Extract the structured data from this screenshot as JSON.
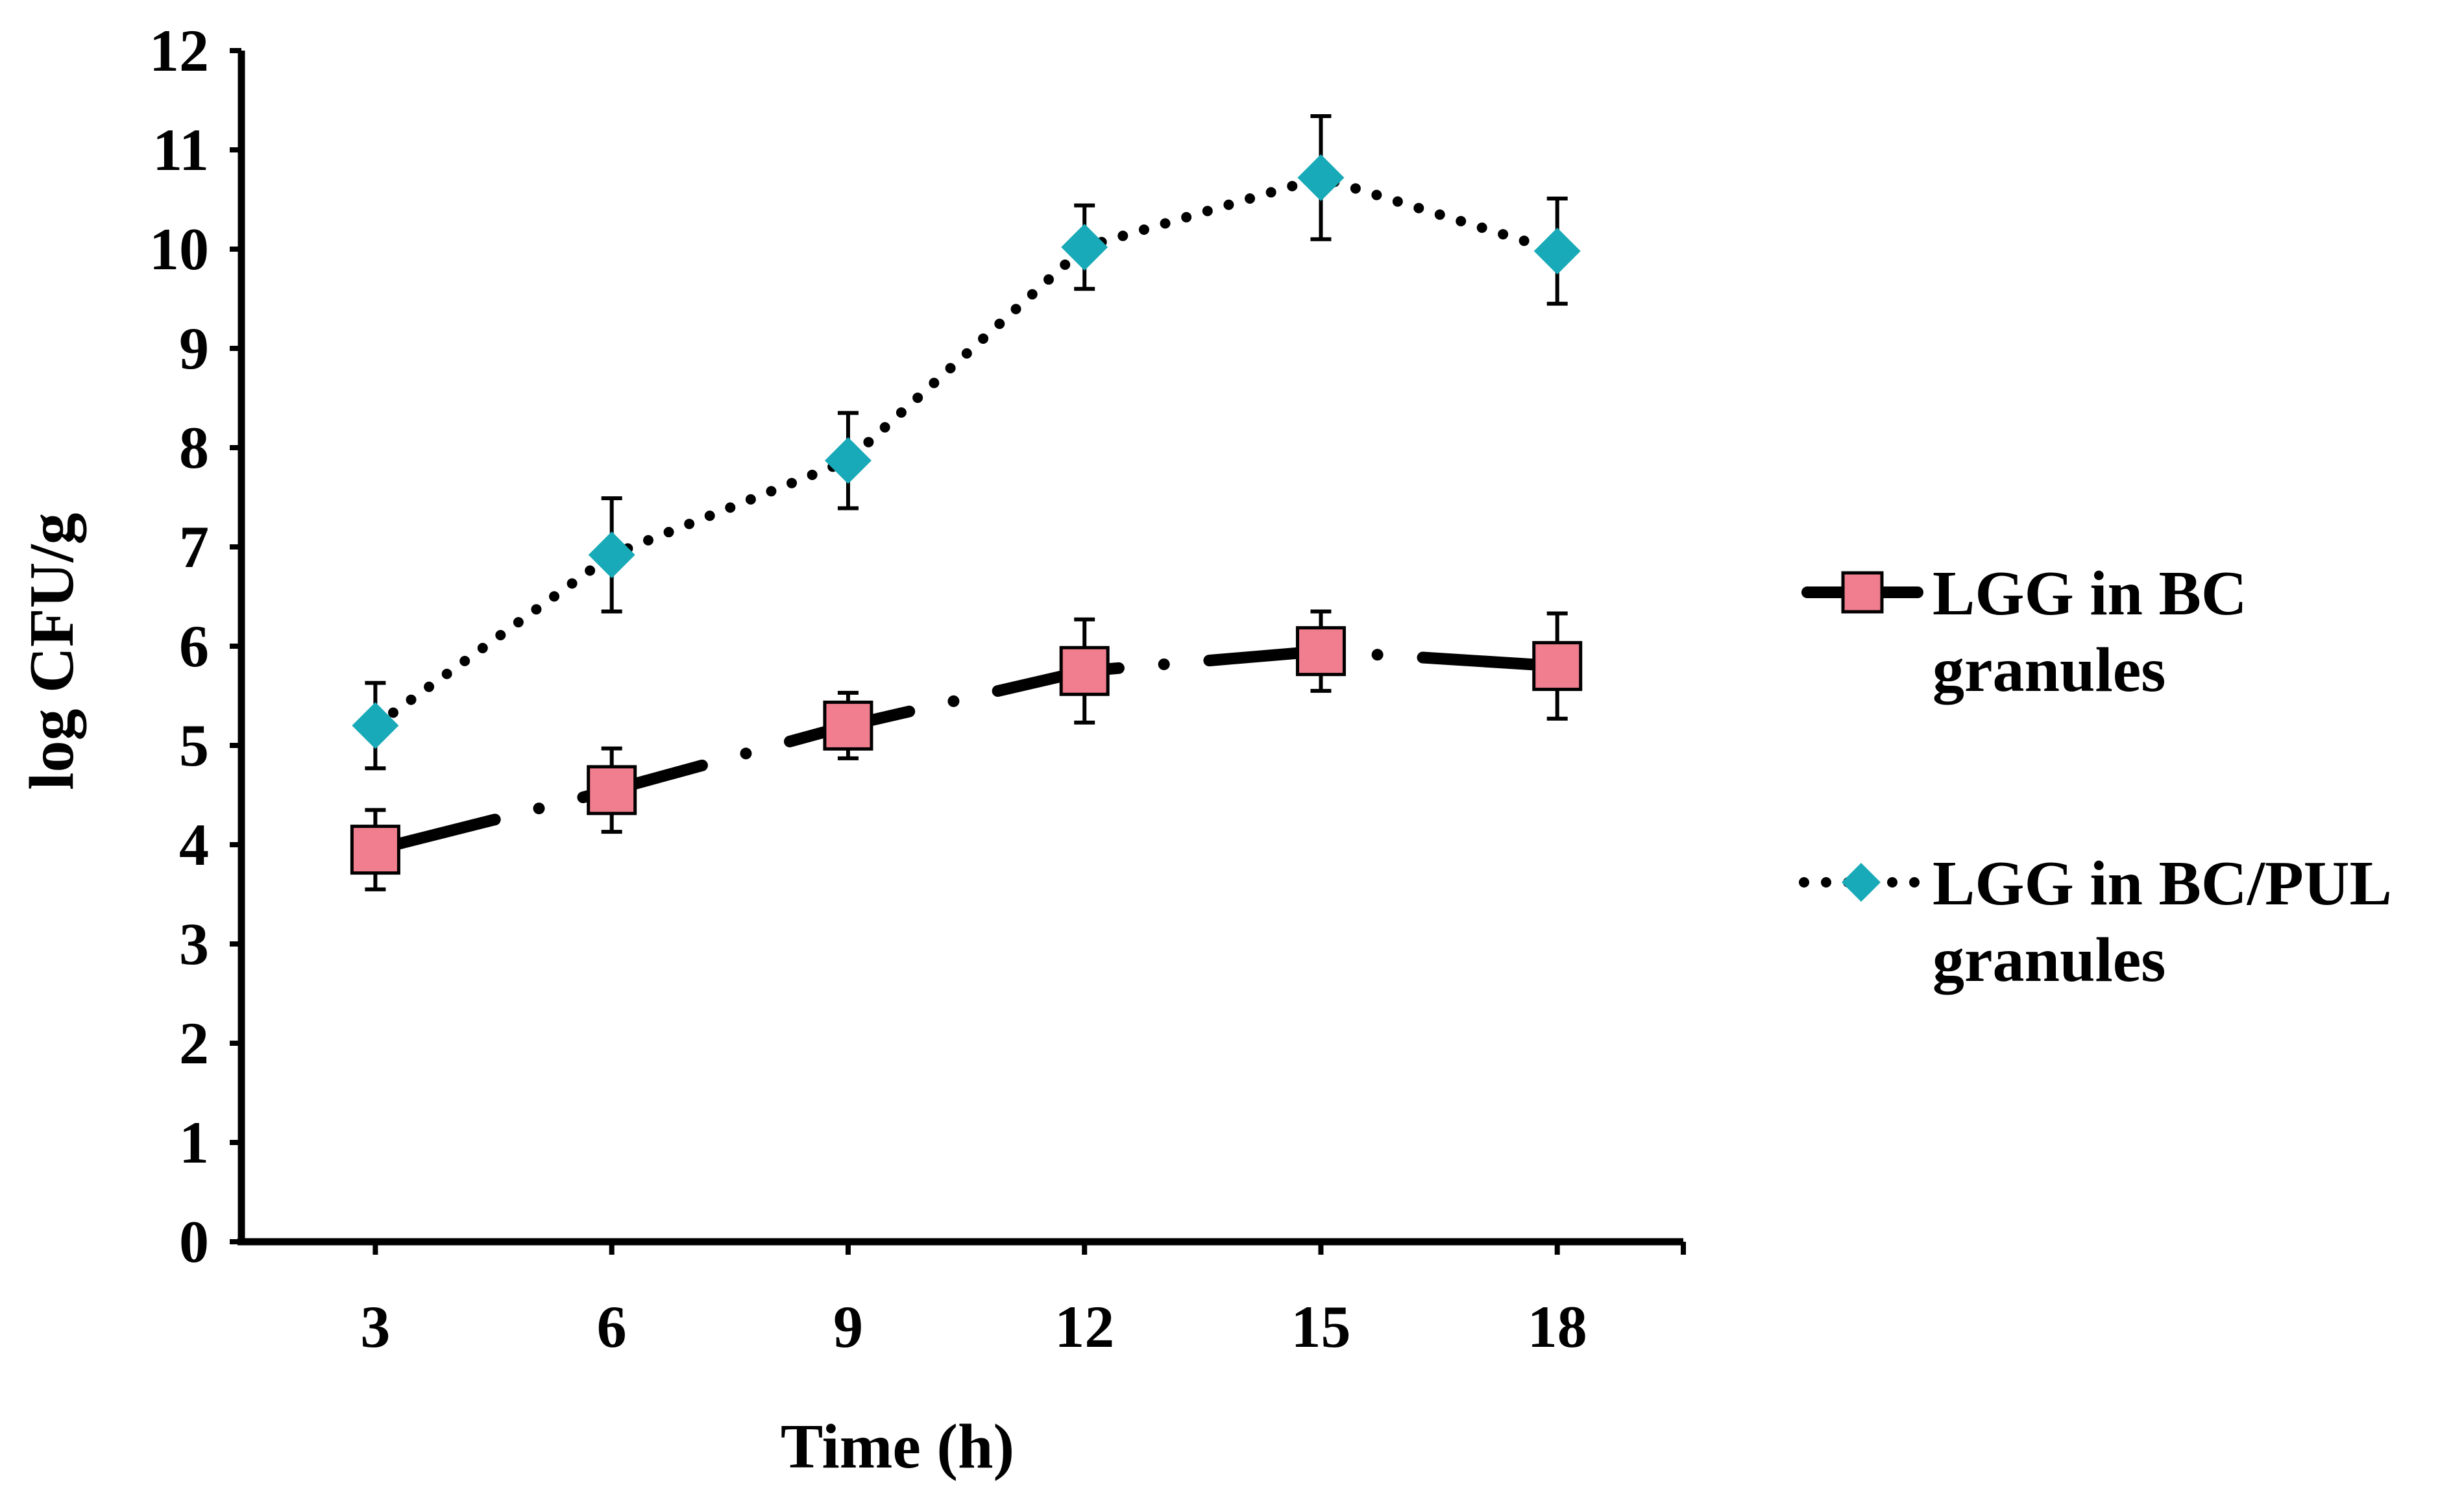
{
  "chart_data": {
    "type": "line",
    "title": "",
    "xlabel": "Time (h)",
    "ylabel": "log CFU/g",
    "x": [
      3,
      6,
      9,
      12,
      15,
      18
    ],
    "x_tick_labels": [
      "3",
      "6",
      "9",
      "12",
      "15",
      "18"
    ],
    "y_tick_labels": [
      "0",
      "1",
      "2",
      "3",
      "4",
      "5",
      "6",
      "7",
      "8",
      "9",
      "10",
      "11",
      "12"
    ],
    "ylim": [
      0,
      12
    ],
    "xlim": [
      1.3,
      19.6
    ],
    "grid": false,
    "legend_position": "right",
    "series": [
      {
        "name": "LGG in BC granules",
        "name_lines": [
          "LGG in BC",
          "granules"
        ],
        "values": [
          3.95,
          4.55,
          5.2,
          5.75,
          5.95,
          5.8
        ],
        "errors": [
          0.4,
          0.42,
          0.33,
          0.52,
          0.4,
          0.53
        ],
        "marker": "square",
        "marker_color": "#f07e8e",
        "line_color": "#000000",
        "line_style": "dash-dot"
      },
      {
        "name": "LGG in BC/PUL granules",
        "name_lines": [
          "LGG in BC/PUL",
          "granules"
        ],
        "values": [
          5.2,
          6.92,
          7.87,
          10.02,
          10.72,
          9.98
        ],
        "errors": [
          0.43,
          0.57,
          0.48,
          0.42,
          0.62,
          0.53
        ],
        "marker": "diamond",
        "marker_color": "#18aab8",
        "line_color": "#000000",
        "line_style": "dotted"
      }
    ]
  }
}
